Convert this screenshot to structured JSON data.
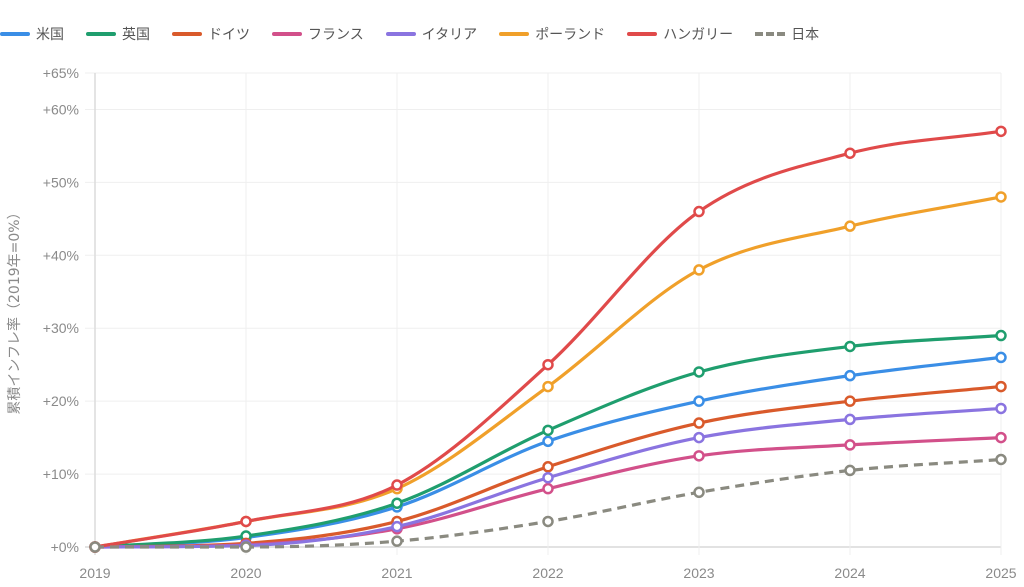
{
  "chart_data": {
    "type": "line",
    "title": "",
    "xlabel": "",
    "ylabel": "累積インフレ率（2019年=0%）",
    "x": [
      "2019",
      "2020",
      "2021",
      "2022",
      "2023",
      "2024",
      "2025"
    ],
    "ylim": [
      0,
      65
    ],
    "yticks": [
      0,
      10,
      20,
      30,
      40,
      50,
      60,
      65
    ],
    "ytick_labels": [
      "+0%",
      "+10%",
      "+20%",
      "+30%",
      "+40%",
      "+50%",
      "+60%",
      "+65%"
    ],
    "grid": true,
    "legend_position": "top",
    "series": [
      {
        "name": "米国",
        "color": "#3a8ee6",
        "dashed": false,
        "values": [
          0,
          1.3,
          5.5,
          14.5,
          20,
          23.5,
          26
        ]
      },
      {
        "name": "英国",
        "color": "#1f9e6e",
        "dashed": false,
        "values": [
          0,
          1.5,
          6,
          16,
          24,
          27.5,
          29
        ]
      },
      {
        "name": "ドイツ",
        "color": "#d95a2b",
        "dashed": false,
        "values": [
          0,
          0.5,
          3.5,
          11,
          17,
          20,
          22
        ]
      },
      {
        "name": "フランス",
        "color": "#d2508a",
        "dashed": false,
        "values": [
          0,
          0.3,
          2.5,
          8,
          12.5,
          14,
          15
        ]
      },
      {
        "name": "イタリア",
        "color": "#8a74e0",
        "dashed": false,
        "values": [
          0,
          0.2,
          2.8,
          9.5,
          15,
          17.5,
          19
        ]
      },
      {
        "name": "ポーランド",
        "color": "#f0a02a",
        "dashed": false,
        "values": [
          0,
          3.5,
          8,
          22,
          38,
          44,
          48
        ]
      },
      {
        "name": "ハンガリー",
        "color": "#e04a4a",
        "dashed": false,
        "values": [
          0,
          3.5,
          8.5,
          25,
          46,
          54,
          57
        ]
      },
      {
        "name": "日本",
        "color": "#8a8a80",
        "dashed": true,
        "values": [
          0,
          0,
          0.8,
          3.5,
          7.5,
          10.5,
          12
        ]
      }
    ]
  }
}
